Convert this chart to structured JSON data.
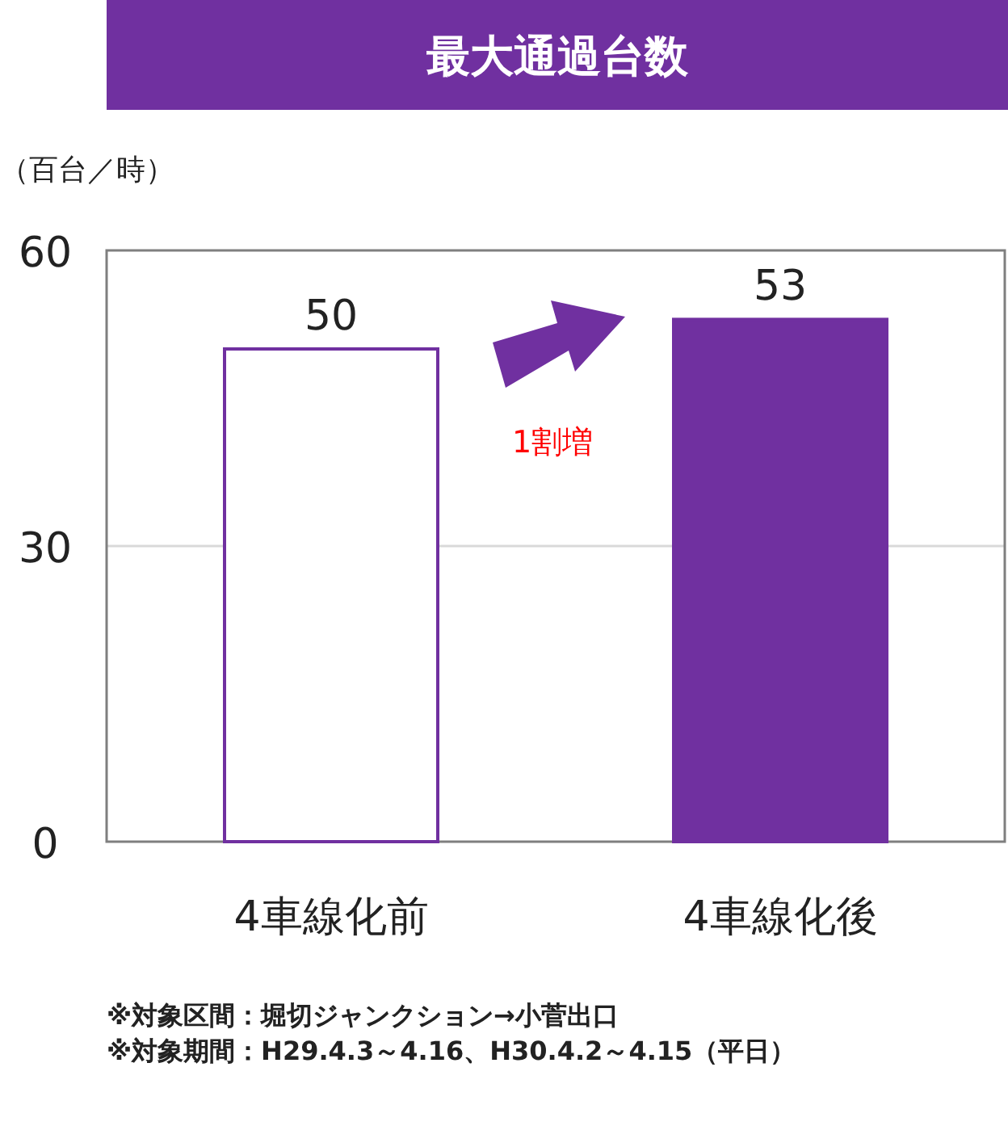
{
  "chart_data": {
    "type": "bar",
    "title": "最大通過台数",
    "ylabel": "（百台／時）",
    "categories": [
      "4車線化前",
      "4車線化後"
    ],
    "values": [
      50,
      53
    ],
    "colors": [
      "#ffffff",
      "#7030a0"
    ],
    "ylim": [
      0,
      60
    ],
    "yticks": [
      0,
      30,
      60
    ],
    "grid": "y",
    "data_labels": true,
    "annotations": [
      "1割増",
      "※対象区間：堀切ジャンクション→小菅出口",
      "※対象期間：H29.4.3～4.16、H30.4.2～4.15（平日）"
    ]
  }
}
